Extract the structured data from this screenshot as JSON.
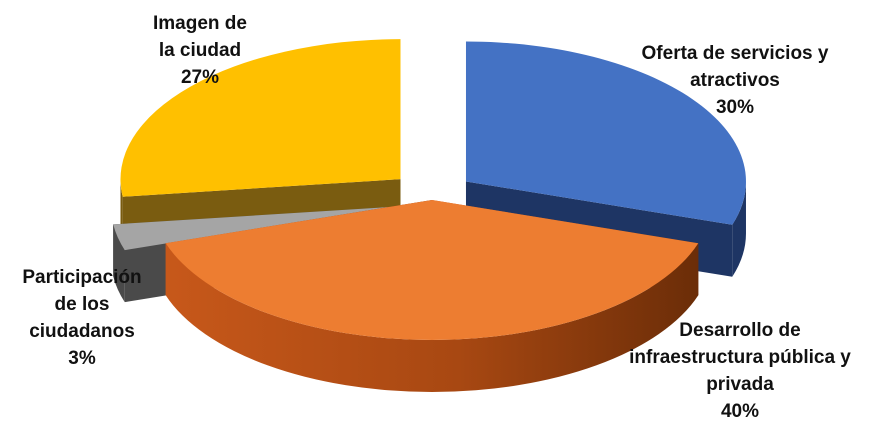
{
  "chart_data": {
    "type": "pie",
    "title": "",
    "legend": "none",
    "slices": [
      {
        "label": [
          "Oferta de servicios y",
          "atractivos"
        ],
        "value": 30,
        "value_label": "30%",
        "color": "#4472c4",
        "exploded": true
      },
      {
        "label": [
          "Desarrollo de",
          "infraestructura pública y",
          "privada"
        ],
        "value": 40,
        "value_label": "40%",
        "color": "#ed7d31",
        "exploded": false
      },
      {
        "label": [
          "Participación",
          "de los",
          "ciudadanos"
        ],
        "value": 3,
        "value_label": "3%",
        "color": "#a5a5a5",
        "exploded": true
      },
      {
        "label": [
          "Imagen de",
          "la ciudad"
        ],
        "value": 27,
        "value_label": "27%",
        "color": "#ffc000",
        "exploded": true
      }
    ]
  }
}
